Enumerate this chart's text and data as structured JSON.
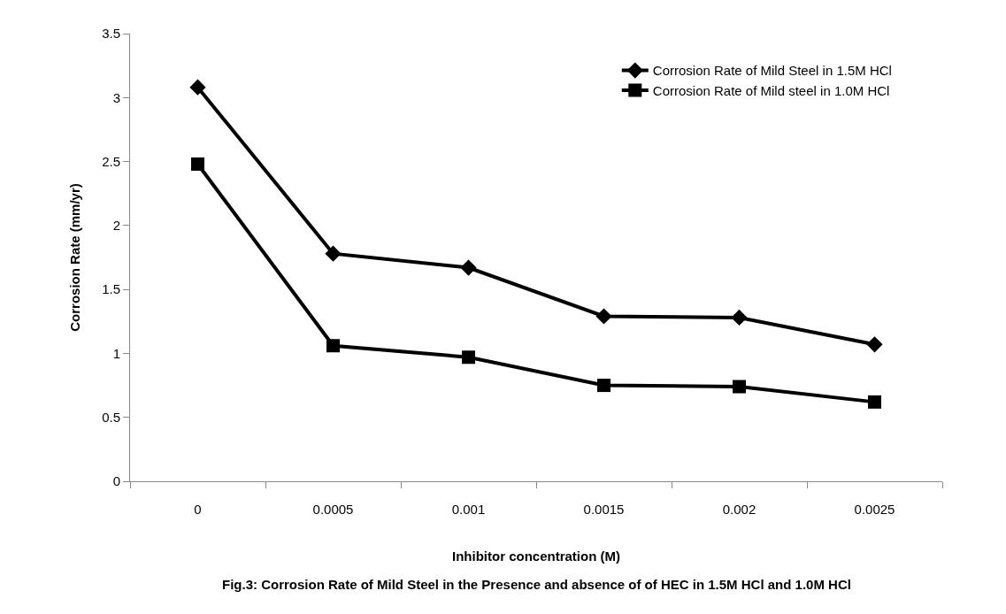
{
  "chart_data": {
    "type": "line",
    "xlabel": "Inhibitor concentration (M)",
    "ylabel": "Corrosion Rate (mm/yr)",
    "categories": [
      "0",
      "0.0005",
      "0.001",
      "0.0015",
      "0.002",
      "0.0025"
    ],
    "series": [
      {
        "name": "Corrosion Rate of Mild Steel in 1.5M HCl",
        "color": "#000000",
        "marker": "diamond",
        "values": [
          3.08,
          1.78,
          1.67,
          1.29,
          1.28,
          1.07
        ]
      },
      {
        "name": "Corrosion Rate of Mild steel in 1.0M HCl",
        "color": "#000000",
        "marker": "square",
        "values": [
          2.48,
          1.06,
          0.97,
          0.75,
          0.74,
          0.62
        ]
      }
    ],
    "ylim": [
      0,
      3.5
    ],
    "yticks": [
      0,
      0.5,
      1,
      1.5,
      2,
      2.5,
      3,
      3.5
    ],
    "grid": false,
    "legend": "top right",
    "line_style": "solid",
    "annotations": [
      "Fig.3: Corrosion Rate of Mild Steel in the Presence and absence of of HEC in 1.5M HCl and 1.0M HCl"
    ]
  }
}
